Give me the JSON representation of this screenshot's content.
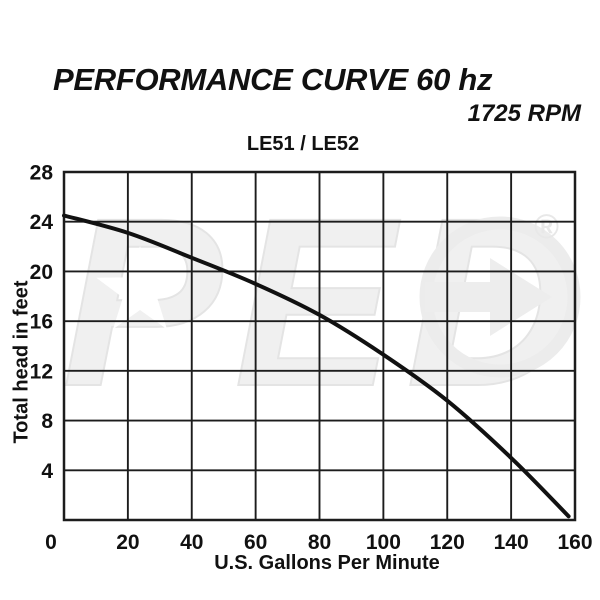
{
  "header": {
    "title": "PERFORMANCE CURVE 60 hz",
    "subtitle": "1725 RPM"
  },
  "watermark": {
    "text": "PED",
    "registered_mark": "®"
  },
  "chart_data": {
    "type": "line",
    "title": "LE51 / LE52",
    "xlabel": "U.S. Gallons Per Minute",
    "ylabel": "Total head in feet",
    "xlim": [
      0,
      160
    ],
    "ylim": [
      0,
      28
    ],
    "x_ticks": [
      0,
      20,
      40,
      60,
      80,
      100,
      120,
      140,
      160
    ],
    "y_ticks": [
      28,
      24,
      20,
      16,
      12,
      8,
      4
    ],
    "grid": true,
    "legend": "none",
    "line_color": "#111111",
    "grid_color": "#1c1c1c",
    "series": [
      {
        "name": "LE51 / LE52 head-capacity curve",
        "x": [
          0,
          20,
          40,
          60,
          80,
          100,
          120,
          140,
          158
        ],
        "y": [
          24.5,
          23.1,
          21.1,
          19.0,
          16.5,
          13.3,
          9.6,
          5.0,
          0.3
        ]
      }
    ]
  }
}
